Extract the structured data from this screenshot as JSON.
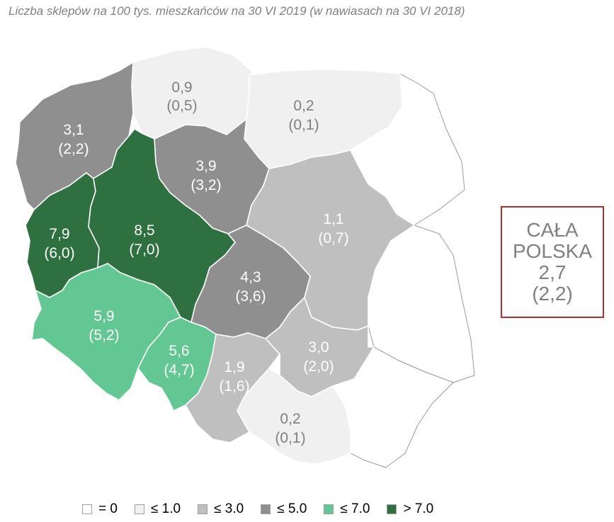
{
  "title": "Liczba sklepów na 100 tys. mieszkańców na 30 VI 2019 (w nawiasach na 30 VI 2018)",
  "colors": {
    "zero": "#ffffff",
    "le1": "#f0f0f0",
    "le3": "#bfbfbf",
    "le5": "#8f8f8f",
    "le7": "#63c794",
    "gt7": "#2f7040",
    "outline": "#9a9a9a",
    "box_border": "#b03030"
  },
  "regions": [
    {
      "id": "pomorskie",
      "value": "0,9",
      "prev": "(0,5)",
      "color_class": "le1"
    },
    {
      "id": "warminsko-mazurskie",
      "value": "0,2",
      "prev": "(0,1)",
      "color_class": "le1"
    },
    {
      "id": "zachodniopomorskie",
      "value": "3,1",
      "prev": "(2,2)",
      "color_class": "le5"
    },
    {
      "id": "kujawsko-pomorskie",
      "value": "3,9",
      "prev": "(3,2)",
      "color_class": "le5"
    },
    {
      "id": "podlaskie",
      "value": "",
      "prev": "",
      "color_class": "zero"
    },
    {
      "id": "lubuskie",
      "value": "7,9",
      "prev": "(6,0)",
      "color_class": "gt7"
    },
    {
      "id": "wielkopolskie",
      "value": "8,5",
      "prev": "(7,0)",
      "color_class": "gt7"
    },
    {
      "id": "mazowieckie",
      "value": "1,1",
      "prev": "(0,7)",
      "color_class": "le3"
    },
    {
      "id": "lodzkie",
      "value": "4,3",
      "prev": "(3,6)",
      "color_class": "le5"
    },
    {
      "id": "dolnoslaskie",
      "value": "5,9",
      "prev": "(5,2)",
      "color_class": "le7"
    },
    {
      "id": "opolskie",
      "value": "5,6",
      "prev": "(4,7)",
      "color_class": "le7"
    },
    {
      "id": "slaskie",
      "value": "1,9",
      "prev": "(1,6)",
      "color_class": "le3"
    },
    {
      "id": "swietokrzyskie",
      "value": "3,0",
      "prev": "(2,0)",
      "color_class": "le3"
    },
    {
      "id": "lubelskie",
      "value": "",
      "prev": "",
      "color_class": "zero"
    },
    {
      "id": "malopolskie",
      "value": "0,2",
      "prev": "(0,1)",
      "color_class": "le1"
    },
    {
      "id": "podkarpackie",
      "value": "",
      "prev": "",
      "color_class": "zero"
    }
  ],
  "total": {
    "line1": "CAŁA",
    "line2": "POLSKA",
    "value": "2,7",
    "prev": "(2,2)"
  },
  "legend": [
    {
      "label": "= 0",
      "color": "#ffffff"
    },
    {
      "label": "≤ 1.0",
      "color": "#f0f0f0"
    },
    {
      "label": "≤ 3.0",
      "color": "#bfbfbf"
    },
    {
      "label": "≤ 5.0",
      "color": "#8f8f8f"
    },
    {
      "label": "≤ 7.0",
      "color": "#63c794"
    },
    {
      "label": "> 7.0",
      "color": "#2f7040"
    }
  ]
}
